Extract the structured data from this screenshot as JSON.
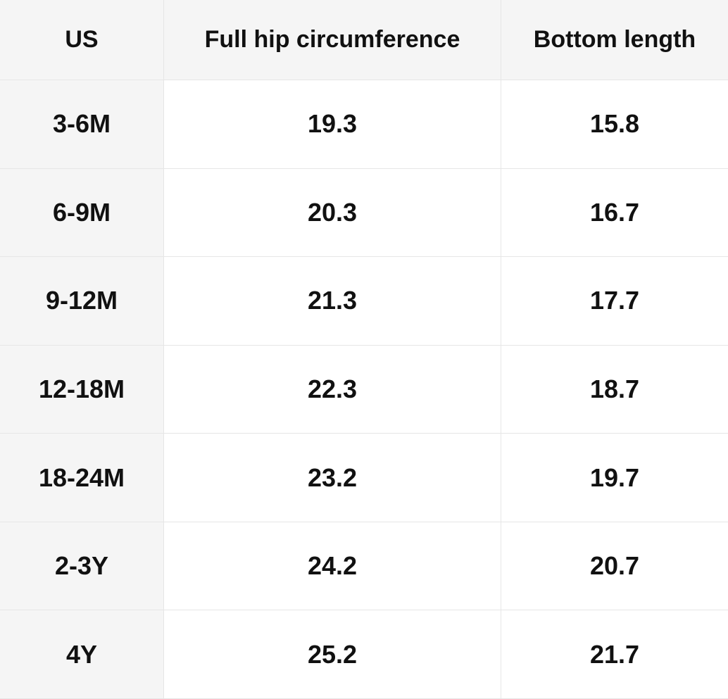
{
  "table": {
    "header": [
      "US",
      "Full hip circumference",
      "Bottom length"
    ],
    "rows": [
      [
        "3-6M",
        "19.3",
        "15.8"
      ],
      [
        "6-9M",
        "20.3",
        "16.7"
      ],
      [
        "9-12M",
        "21.3",
        "17.7"
      ],
      [
        "12-18M",
        "22.3",
        "18.7"
      ],
      [
        "18-24M",
        "23.2",
        "19.7"
      ],
      [
        "2-3Y",
        "24.2",
        "20.7"
      ],
      [
        "4Y",
        "25.2",
        "21.7"
      ]
    ]
  }
}
